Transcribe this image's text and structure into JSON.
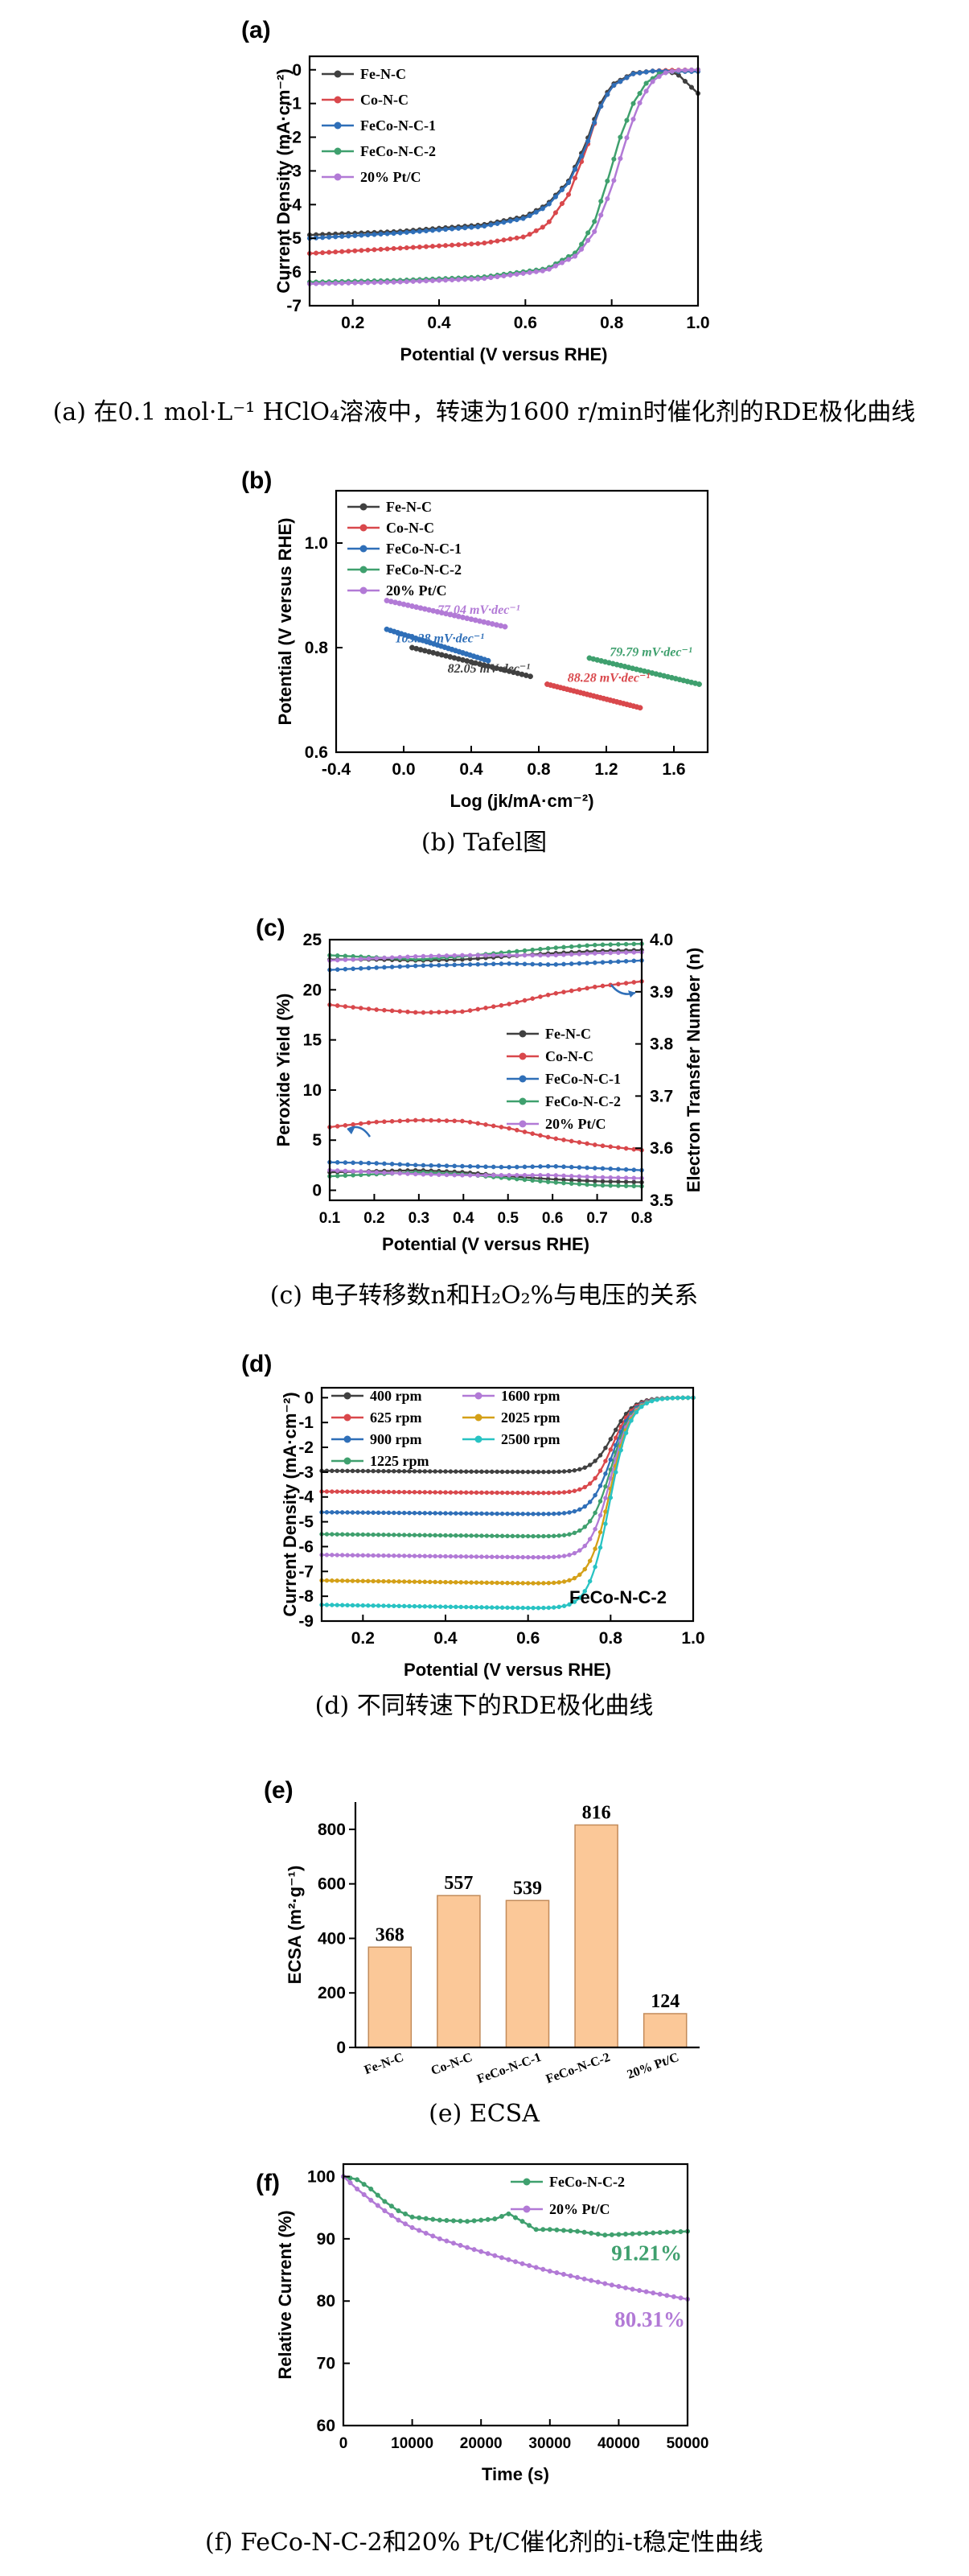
{
  "colors": {
    "Fe-N-C": "#404040",
    "Co-N-C": "#d9484c",
    "FeCo-N-C-1": "#2f6fb8",
    "FeCo-N-C-2": "#3fa06e",
    "20% Pt/C": "#b27ad6",
    "bar_fill": "#fbc898",
    "bar_stroke": "#c28b5a"
  },
  "chart_data": [
    {
      "id": "a",
      "type": "line",
      "panel_label": "(a)",
      "xlabel": "Potential (V versus RHE)",
      "ylabel": "Current Density (mA·cm⁻²)",
      "xlim": [
        0.1,
        1.0
      ],
      "ylim": [
        -7,
        0.4
      ],
      "xticks": [
        0.2,
        0.4,
        0.6,
        0.8,
        1.0
      ],
      "yticks": [
        0,
        -1,
        -2,
        -3,
        -4,
        -5,
        -6,
        -7
      ],
      "caption": "(a) 在0.1 mol·L⁻¹ HClO₄溶液中，转速为1600 r/min时催化剂的RDE极化曲线",
      "series": [
        {
          "name": "Fe-N-C",
          "x": [
            0.1,
            0.3,
            0.5,
            0.6,
            0.65,
            0.7,
            0.74,
            0.77,
            0.8,
            0.85,
            0.9,
            0.95,
            1.0
          ],
          "y": [
            -4.9,
            -4.8,
            -4.6,
            -4.35,
            -4.0,
            -3.3,
            -2.2,
            -1.1,
            -0.45,
            -0.1,
            -0.03,
            -0.1,
            -0.7
          ]
        },
        {
          "name": "Co-N-C",
          "x": [
            0.1,
            0.3,
            0.5,
            0.6,
            0.65,
            0.7,
            0.74,
            0.77,
            0.8,
            0.85,
            0.9,
            0.95,
            1.0
          ],
          "y": [
            -5.45,
            -5.3,
            -5.15,
            -4.95,
            -4.6,
            -3.7,
            -2.4,
            -1.2,
            -0.5,
            -0.12,
            -0.03,
            -0.01,
            0
          ]
        },
        {
          "name": "FeCo-N-C-1",
          "x": [
            0.1,
            0.3,
            0.5,
            0.6,
            0.65,
            0.7,
            0.74,
            0.77,
            0.8,
            0.85,
            0.9,
            0.95,
            1.0
          ],
          "y": [
            -5.0,
            -4.85,
            -4.65,
            -4.4,
            -4.05,
            -3.35,
            -2.3,
            -1.2,
            -0.5,
            -0.12,
            -0.03,
            -0.05,
            -0.05
          ]
        },
        {
          "name": "FeCo-N-C-2",
          "x": [
            0.1,
            0.3,
            0.5,
            0.65,
            0.72,
            0.76,
            0.79,
            0.82,
            0.85,
            0.88,
            0.91,
            0.95,
            1.0
          ],
          "y": [
            -6.3,
            -6.25,
            -6.15,
            -5.9,
            -5.4,
            -4.5,
            -3.3,
            -2.0,
            -1.0,
            -0.4,
            -0.12,
            -0.03,
            0
          ]
        },
        {
          "name": "20% Pt/C",
          "x": [
            0.1,
            0.3,
            0.5,
            0.65,
            0.72,
            0.76,
            0.8,
            0.83,
            0.86,
            0.89,
            0.92,
            0.95,
            1.0
          ],
          "y": [
            -6.35,
            -6.3,
            -6.2,
            -5.95,
            -5.5,
            -4.8,
            -3.5,
            -2.2,
            -1.1,
            -0.4,
            -0.1,
            -0.02,
            0
          ]
        }
      ]
    },
    {
      "id": "b",
      "type": "line",
      "panel_label": "(b)",
      "xlabel": "Log (jk/mA·cm⁻²)",
      "ylabel": "Potential (V versus RHE)",
      "xlim": [
        -0.4,
        1.8
      ],
      "ylim": [
        0.6,
        1.1
      ],
      "xticks": [
        -0.4,
        0.0,
        0.4,
        0.8,
        1.2,
        1.6
      ],
      "yticks": [
        0.6,
        0.8,
        1.0
      ],
      "caption": "(b) Tafel图",
      "series": [
        {
          "name": "Fe-N-C",
          "x": [
            0.05,
            0.75
          ],
          "y": [
            0.8,
            0.745
          ]
        },
        {
          "name": "Co-N-C",
          "x": [
            0.85,
            1.4
          ],
          "y": [
            0.73,
            0.685
          ]
        },
        {
          "name": "FeCo-N-C-1",
          "x": [
            -0.1,
            0.5
          ],
          "y": [
            0.835,
            0.775
          ]
        },
        {
          "name": "FeCo-N-C-2",
          "x": [
            1.1,
            1.75
          ],
          "y": [
            0.78,
            0.73
          ]
        },
        {
          "name": "20% Pt/C",
          "x": [
            -0.1,
            0.6
          ],
          "y": [
            0.89,
            0.84
          ]
        }
      ],
      "annotations": [
        {
          "text": "77.04 mV·dec⁻¹",
          "x": 0.2,
          "y": 0.865,
          "series": "20% Pt/C"
        },
        {
          "text": "103.28 mV·dec⁻¹",
          "x": -0.05,
          "y": 0.81,
          "series": "FeCo-N-C-1"
        },
        {
          "text": "82.05 mV·dec⁻¹",
          "x": 0.26,
          "y": 0.752,
          "series": "Fe-N-C"
        },
        {
          "text": "88.28 mV·dec⁻¹",
          "x": 0.97,
          "y": 0.735,
          "series": "Co-N-C"
        },
        {
          "text": "79.79 mV·dec⁻¹",
          "x": 1.22,
          "y": 0.784,
          "series": "FeCo-N-C-2"
        }
      ]
    },
    {
      "id": "c",
      "type": "line",
      "panel_label": "(c)",
      "xlabel": "Potential (V versus RHE)",
      "ylabel": "Peroxide Yield (%)",
      "y2label": "Electron Transfer Number (n)",
      "xlim": [
        0.1,
        0.8
      ],
      "ylim": [
        -1,
        25
      ],
      "y2lim": [
        3.5,
        4.0
      ],
      "xticks": [
        0.1,
        0.2,
        0.3,
        0.4,
        0.5,
        0.6,
        0.7,
        0.8
      ],
      "yticks": [
        0,
        5,
        10,
        15,
        20,
        25
      ],
      "y2ticks": [
        3.5,
        3.6,
        3.7,
        3.8,
        3.9,
        4.0
      ],
      "caption": "(c) 电子转移数n和H₂O₂%与电压的关系",
      "peroxide_series": [
        {
          "name": "Fe-N-C",
          "x": [
            0.1,
            0.2,
            0.3,
            0.4,
            0.5,
            0.6,
            0.7,
            0.8
          ],
          "y": [
            1.8,
            1.9,
            2.0,
            1.8,
            1.4,
            1.1,
            0.9,
            0.8
          ]
        },
        {
          "name": "Co-N-C",
          "x": [
            0.1,
            0.2,
            0.3,
            0.4,
            0.5,
            0.6,
            0.7,
            0.8
          ],
          "y": [
            6.3,
            6.8,
            7.0,
            6.9,
            6.2,
            5.2,
            4.5,
            4.0
          ]
        },
        {
          "name": "FeCo-N-C-1",
          "x": [
            0.1,
            0.2,
            0.3,
            0.4,
            0.5,
            0.6,
            0.7,
            0.8
          ],
          "y": [
            2.8,
            2.7,
            2.5,
            2.4,
            2.3,
            2.4,
            2.2,
            2.0
          ]
        },
        {
          "name": "FeCo-N-C-2",
          "x": [
            0.1,
            0.2,
            0.3,
            0.4,
            0.5,
            0.6,
            0.7,
            0.8
          ],
          "y": [
            1.4,
            1.6,
            1.8,
            1.6,
            1.2,
            0.8,
            0.5,
            0.4
          ]
        },
        {
          "name": "20% Pt/C",
          "x": [
            0.1,
            0.2,
            0.3,
            0.4,
            0.5,
            0.6,
            0.7,
            0.8
          ],
          "y": [
            2.0,
            1.8,
            1.6,
            1.5,
            1.5,
            1.5,
            1.3,
            1.2
          ]
        }
      ],
      "n_series": [
        {
          "name": "Fe-N-C",
          "x": [
            0.1,
            0.2,
            0.3,
            0.4,
            0.5,
            0.6,
            0.7,
            0.8
          ],
          "y": [
            3.962,
            3.962,
            3.96,
            3.962,
            3.968,
            3.974,
            3.978,
            3.98
          ]
        },
        {
          "name": "Co-N-C",
          "x": [
            0.1,
            0.2,
            0.3,
            0.4,
            0.5,
            0.6,
            0.7,
            0.8
          ],
          "y": [
            3.875,
            3.866,
            3.86,
            3.862,
            3.876,
            3.896,
            3.91,
            3.92
          ]
        },
        {
          "name": "FeCo-N-C-1",
          "x": [
            0.1,
            0.2,
            0.3,
            0.4,
            0.5,
            0.6,
            0.7,
            0.8
          ],
          "y": [
            3.942,
            3.946,
            3.95,
            3.952,
            3.954,
            3.952,
            3.956,
            3.96
          ]
        },
        {
          "name": "FeCo-N-C-2",
          "x": [
            0.1,
            0.2,
            0.3,
            0.4,
            0.5,
            0.6,
            0.7,
            0.8
          ],
          "y": [
            3.97,
            3.966,
            3.962,
            3.968,
            3.976,
            3.984,
            3.99,
            3.992
          ]
        },
        {
          "name": "20% Pt/C",
          "x": [
            0.1,
            0.2,
            0.3,
            0.4,
            0.5,
            0.6,
            0.7,
            0.8
          ],
          "y": [
            3.96,
            3.964,
            3.968,
            3.97,
            3.97,
            3.97,
            3.974,
            3.976
          ]
        }
      ]
    },
    {
      "id": "d",
      "type": "line",
      "panel_label": "(d)",
      "xlabel": "Potential (V versus RHE)",
      "ylabel": "Current Density (mA·cm⁻²)",
      "xlim": [
        0.1,
        1.0
      ],
      "ylim": [
        -9,
        0.4
      ],
      "xticks": [
        0.2,
        0.4,
        0.6,
        0.8,
        1.0
      ],
      "yticks": [
        0,
        -1,
        -2,
        -3,
        -4,
        -5,
        -6,
        -7,
        -8,
        -9
      ],
      "annotation": "FeCo-N-C-2",
      "caption": "(d) 不同转速下的RDE极化曲线",
      "series": [
        {
          "name": "400 rpm",
          "color": "#404040",
          "limit": -3.0
        },
        {
          "name": "625 rpm",
          "color": "#d9484c",
          "limit": -3.85
        },
        {
          "name": "900 rpm",
          "color": "#2f6fb8",
          "limit": -4.7
        },
        {
          "name": "1225 rpm",
          "color": "#3fa06e",
          "limit": -5.6
        },
        {
          "name": "1600 rpm",
          "color": "#b27ad6",
          "limit": -6.45
        },
        {
          "name": "2025 rpm",
          "color": "#d4a017",
          "limit": -7.5
        },
        {
          "name": "2500 rpm",
          "color": "#28c3c3",
          "limit": -8.5
        }
      ]
    },
    {
      "id": "e",
      "type": "bar",
      "panel_label": "(e)",
      "ylabel": "ECSA (m²·g⁻¹)",
      "ylim": [
        0,
        900
      ],
      "yticks": [
        0,
        200,
        400,
        600,
        800
      ],
      "categories": [
        "Fe-N-C",
        "Co-N-C",
        "FeCo-N-C-1",
        "FeCo-N-C-2",
        "20% Pt/C"
      ],
      "values": [
        368,
        557,
        539,
        816,
        124
      ],
      "caption": "(e) ECSA"
    },
    {
      "id": "f",
      "type": "line",
      "panel_label": "(f)",
      "xlabel": "Time (s)",
      "ylabel": "Relative Current (%)",
      "xlim": [
        0,
        50000
      ],
      "ylim": [
        60,
        102
      ],
      "xticks": [
        0,
        10000,
        20000,
        30000,
        40000,
        50000
      ],
      "yticks": [
        60,
        70,
        80,
        90,
        100
      ],
      "caption": "(f) FeCo-N-C-2和20% Pt/C催化剂的i-t稳定性曲线",
      "series": [
        {
          "name": "FeCo-N-C-2",
          "end_label": "91.21%",
          "x": [
            0,
            2000,
            4000,
            6000,
            8000,
            10000,
            14000,
            18000,
            22000,
            24000,
            26000,
            28000,
            30000,
            34000,
            38000,
            42000,
            46000,
            50000
          ],
          "y": [
            100,
            99.5,
            98,
            96,
            94.5,
            93.5,
            93,
            92.8,
            93.2,
            94,
            92.8,
            91.5,
            91.5,
            91.2,
            90.6,
            90.8,
            91.0,
            91.2
          ]
        },
        {
          "name": "20% Pt/C",
          "end_label": "80.31%",
          "x": [
            0,
            2000,
            4000,
            6000,
            8000,
            10000,
            14000,
            18000,
            22000,
            26000,
            30000,
            34000,
            38000,
            42000,
            46000,
            50000
          ],
          "y": [
            100,
            98,
            96.2,
            94.5,
            93,
            91.8,
            90,
            88.6,
            87.3,
            86,
            84.8,
            83.8,
            82.8,
            81.9,
            81.1,
            80.3
          ]
        }
      ]
    }
  ]
}
